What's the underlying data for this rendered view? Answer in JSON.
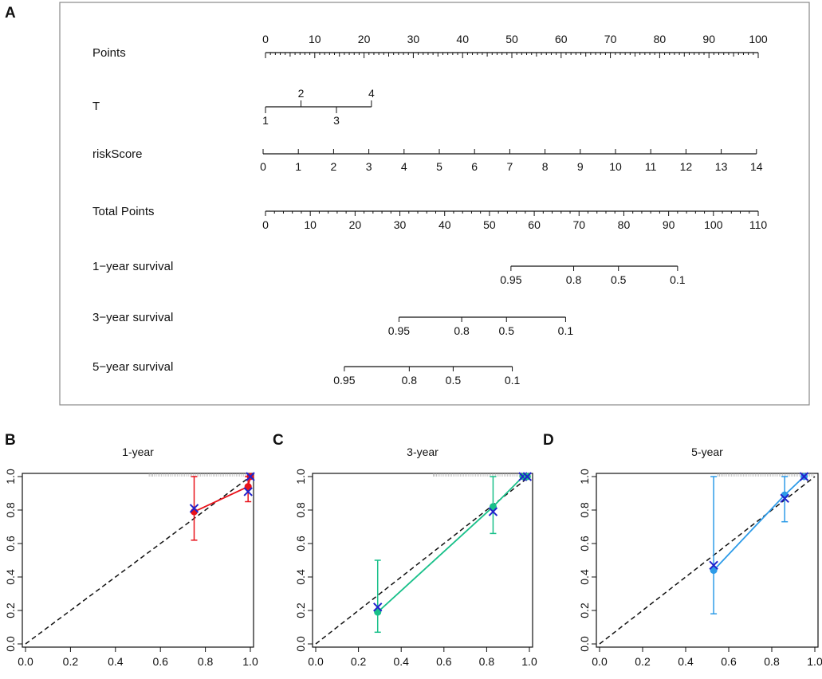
{
  "chart_data": [
    {
      "panel": "A",
      "type": "nomogram",
      "rows": [
        {
          "label": "Points",
          "min": 0,
          "max": 100,
          "labels": [
            0,
            10,
            20,
            30,
            40,
            50,
            60,
            70,
            80,
            90,
            100
          ],
          "minor": 1,
          "labels_above": true
        },
        {
          "label": "T",
          "categories": [
            "1",
            "2",
            "3",
            "4"
          ],
          "points": [
            0,
            7.2,
            14.4,
            21.5
          ],
          "labels_position": [
            "below",
            "above",
            "below",
            "above"
          ]
        },
        {
          "label": "riskScore",
          "min": 0,
          "max": 14,
          "labels": [
            0,
            1,
            2,
            3,
            4,
            5,
            6,
            7,
            8,
            9,
            10,
            11,
            12,
            13,
            14
          ],
          "labels_below": true
        },
        {
          "label": "Total Points",
          "min": 0,
          "max": 110,
          "labels": [
            0,
            10,
            20,
            30,
            40,
            50,
            60,
            70,
            80,
            90,
            100,
            110
          ],
          "minor": 2
        },
        {
          "label": "1−year survival",
          "scale": "total_points",
          "start": 54.8,
          "end": 92,
          "ticks": [
            {
              "value": 0.95,
              "at": 54.8
            },
            {
              "value": 0.8,
              "at": 68.8
            },
            {
              "value": 0.5,
              "at": 78.8
            },
            {
              "value": 0.1,
              "at": 92.0
            }
          ]
        },
        {
          "label": "3−year survival",
          "scale": "total_points",
          "start": 29.8,
          "end": 67,
          "ticks": [
            {
              "value": 0.95,
              "at": 29.8
            },
            {
              "value": 0.8,
              "at": 43.8
            },
            {
              "value": 0.5,
              "at": 53.8
            },
            {
              "value": 0.1,
              "at": 67.0
            }
          ]
        },
        {
          "label": "5−year survival",
          "scale": "total_points",
          "start": 17.6,
          "end": 55.1,
          "ticks": [
            {
              "value": 0.95,
              "at": 17.6
            },
            {
              "value": 0.8,
              "at": 32.1
            },
            {
              "value": 0.5,
              "at": 41.9
            },
            {
              "value": 0.1,
              "at": 55.1
            }
          ]
        }
      ]
    },
    {
      "panel": "B",
      "type": "calibration",
      "title": "1-year",
      "xlim": [
        0,
        1
      ],
      "ylim": [
        0,
        1
      ],
      "xticks": [
        "0.0",
        "0.2",
        "0.4",
        "0.6",
        "0.8",
        "1.0"
      ],
      "yticks": [
        "0.0",
        "0.2",
        "0.4",
        "0.6",
        "0.8",
        "1.0"
      ],
      "color": "#e8121a",
      "points": [
        {
          "x": 0.75,
          "y": 0.79,
          "lo": 0.62,
          "hi": 1.0,
          "x_corrected": 0.81
        },
        {
          "x": 0.99,
          "y": 0.94,
          "lo": 0.85,
          "hi": 1.0,
          "x_corrected": 0.91
        },
        {
          "x": 1.0,
          "y": 1.0,
          "lo": 1.0,
          "hi": 1.0,
          "x_corrected": 1.0
        }
      ]
    },
    {
      "panel": "C",
      "type": "calibration",
      "title": "3-year",
      "xlim": [
        0,
        1
      ],
      "ylim": [
        0,
        1
      ],
      "xticks": [
        "0.0",
        "0.2",
        "0.4",
        "0.6",
        "0.8",
        "1.0"
      ],
      "yticks": [
        "0.0",
        "0.2",
        "0.4",
        "0.6",
        "0.8",
        "1.0"
      ],
      "color": "#19c08a",
      "points": [
        {
          "x": 0.29,
          "y": 0.19,
          "lo": 0.07,
          "hi": 0.5,
          "x_corrected": 0.22
        },
        {
          "x": 0.83,
          "y": 0.82,
          "lo": 0.66,
          "hi": 1.0,
          "x_corrected": 0.79
        },
        {
          "x": 0.97,
          "y": 1.0,
          "lo": 1.0,
          "hi": 1.0,
          "x_corrected": 1.0
        },
        {
          "x": 0.99,
          "y": 1.0,
          "lo": 1.0,
          "hi": 1.0,
          "x_corrected": 1.0
        }
      ]
    },
    {
      "panel": "D",
      "type": "calibration",
      "title": "5-year",
      "xlim": [
        0,
        1
      ],
      "ylim": [
        0,
        1
      ],
      "xticks": [
        "0.0",
        "0.2",
        "0.4",
        "0.6",
        "0.8",
        "1.0"
      ],
      "yticks": [
        "0.0",
        "0.2",
        "0.4",
        "0.6",
        "0.8",
        "1.0"
      ],
      "color": "#2d9be8",
      "points": [
        {
          "x": 0.53,
          "y": 0.44,
          "lo": 0.18,
          "hi": 1.0,
          "x_corrected": 0.47
        },
        {
          "x": 0.86,
          "y": 0.89,
          "lo": 0.73,
          "hi": 1.0,
          "x_corrected": 0.87
        },
        {
          "x": 0.95,
          "y": 1.0,
          "lo": 1.0,
          "hi": 1.0,
          "x_corrected": 1.0
        }
      ]
    }
  ]
}
